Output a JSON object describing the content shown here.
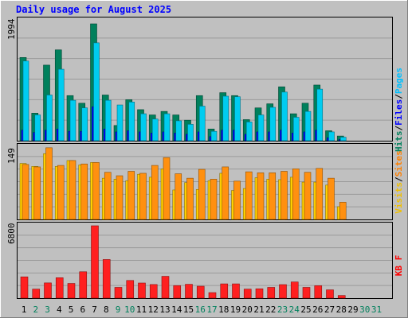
{
  "chart_data": {
    "type": "bar",
    "title": "Daily usage for August 2025",
    "categories": [
      "1",
      "2",
      "3",
      "4",
      "5",
      "6",
      "7",
      "8",
      "9",
      "10",
      "11",
      "12",
      "13",
      "14",
      "15",
      "16",
      "17",
      "18",
      "19",
      "20",
      "21",
      "22",
      "23",
      "24",
      "25",
      "26",
      "27",
      "28",
      "29",
      "30",
      "31"
    ],
    "weekend_days": [
      "2",
      "3",
      "9",
      "10",
      "16",
      "17",
      "23",
      "24",
      "30",
      "31"
    ],
    "panels": [
      {
        "id": "hits",
        "scale_label": "1994",
        "ymax": 1994,
        "right_labels": [
          {
            "text": "Hits",
            "color": "#00805c"
          },
          {
            "text": "/",
            "color": "#000000"
          },
          {
            "text": "Files",
            "color": "#0000ff"
          },
          {
            "text": "/",
            "color": "#000000"
          },
          {
            "text": "Pages",
            "color": "#00c0ff"
          }
        ],
        "series": [
          {
            "name": "Hits",
            "color": "#00805c",
            "values": [
              1420,
              470,
              1290,
              1550,
              770,
              640,
              1994,
              780,
              260,
              700,
              530,
              440,
              500,
              440,
              350,
              770,
              200,
              820,
              770,
              360,
              560,
              630,
              920,
              460,
              640,
              950,
              170,
              80,
              0,
              0,
              0
            ]
          },
          {
            "name": "Files",
            "color": "#0000ff",
            "values": [
              180,
              140,
              180,
              200,
              160,
              160,
              580,
              200,
              150,
              170,
              150,
              130,
              150,
              130,
              110,
              150,
              70,
              180,
              180,
              110,
              150,
              150,
              180,
              130,
              150,
              180,
              50,
              20,
              0,
              0,
              0
            ]
          },
          {
            "name": "Pages",
            "color": "#00ccf0",
            "values": [
              1360,
              440,
              780,
              1220,
              690,
              560,
              1670,
              690,
              610,
              660,
              460,
              370,
              460,
              340,
              280,
              590,
              160,
              760,
              750,
              320,
              440,
              570,
              830,
              400,
              500,
              880,
              150,
              60,
              0,
              0,
              0
            ]
          }
        ]
      },
      {
        "id": "visits",
        "scale_label": "149",
        "ymax": 149,
        "right_labels": [
          {
            "text": "Visits",
            "color": "#f0c000"
          },
          {
            "text": "/",
            "color": "#000000"
          },
          {
            "text": "Sites",
            "color": "#ff8000"
          }
        ],
        "series": [
          {
            "name": "Visits",
            "color": "#ffd000",
            "values": [
              114,
              108,
              134,
              108,
              120,
              111,
              116,
              84,
              82,
              79,
              92,
              86,
              103,
              60,
              75,
              61,
              79,
              94,
              59,
              63,
              85,
              82,
              81,
              86,
              76,
              76,
              70,
              26,
              0,
              0,
              0
            ]
          },
          {
            "name": "Sites",
            "color": "#ff9010",
            "values": [
              112,
              107,
              146,
              110,
              120,
              113,
              116,
              96,
              89,
              98,
              94,
              110,
              126,
              93,
              84,
              102,
              82,
              107,
              78,
              97,
              95,
              95,
              98,
              103,
              96,
              104,
              84,
              35,
              0,
              0,
              0
            ]
          }
        ]
      },
      {
        "id": "kbytes",
        "scale_label": "6800",
        "ymax": 6800,
        "right_labels": [
          {
            "text": "KB F",
            "color": "#ff0000"
          }
        ],
        "series": [
          {
            "name": "KB F",
            "color": "#ff2020",
            "values": [
              2000,
              850,
              1430,
              1920,
              1380,
              2480,
              6800,
              3630,
              1010,
              1660,
              1420,
              1280,
              2050,
              1180,
              1300,
              1120,
              520,
              1340,
              1340,
              850,
              880,
              1010,
              1270,
              1520,
              1010,
              1170,
              780,
              250,
              0,
              0,
              0
            ]
          }
        ]
      }
    ]
  }
}
